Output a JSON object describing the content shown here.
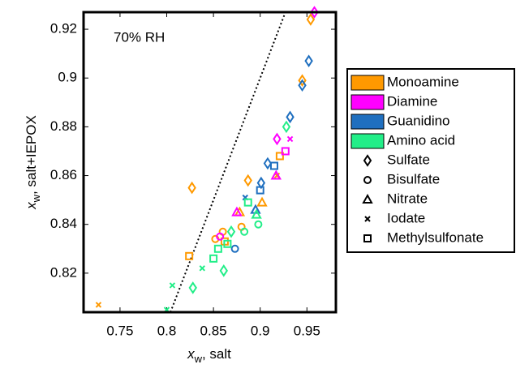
{
  "chart_data": {
    "type": "scatter",
    "annotation": "70% RH",
    "xlabel": {
      "var": "x",
      "sub": "w",
      "text": ", salt"
    },
    "ylabel": {
      "var": "x",
      "sub": "w",
      "text": ", salt+IEPOX"
    },
    "xlim": [
      0.711,
      0.981
    ],
    "ylim": [
      0.804,
      0.927
    ],
    "xticks": [
      0.75,
      0.8,
      0.85,
      0.9,
      0.95
    ],
    "yticks": [
      0.82,
      0.84,
      0.86,
      0.88,
      0.9,
      0.92
    ],
    "identity_line": true,
    "markers": [
      {
        "name": "Sulfate",
        "shape": "diamond"
      },
      {
        "name": "Bisulfate",
        "shape": "circle"
      },
      {
        "name": "Nitrate",
        "shape": "triangle"
      },
      {
        "name": "Iodate",
        "shape": "x"
      },
      {
        "name": "Methylsulfonate",
        "shape": "square"
      }
    ],
    "series": [
      {
        "name": "Monoamine",
        "color": "#ff9900",
        "x": [
          0.954,
          0.827,
          0.887,
          0.945,
          0.727,
          0.824,
          0.852,
          0.86,
          0.88,
          0.878,
          0.902,
          0.918,
          0.921,
          0.862
        ],
        "y": [
          0.924,
          0.855,
          0.858,
          0.899,
          0.807,
          0.827,
          0.834,
          0.837,
          0.839,
          0.845,
          0.849,
          0.86,
          0.868,
          0.833
        ],
        "marker": [
          0,
          0,
          0,
          0,
          3,
          4,
          1,
          1,
          1,
          2,
          2,
          3,
          4,
          4
        ]
      },
      {
        "name": "Diamine",
        "color": "#ff00ff",
        "x": [
          0.958,
          0.918,
          0.932,
          0.927,
          0.875,
          0.917,
          0.857
        ],
        "y": [
          0.927,
          0.875,
          0.875,
          0.87,
          0.845,
          0.86,
          0.835
        ],
        "marker": [
          0,
          0,
          3,
          4,
          2,
          2,
          1
        ]
      },
      {
        "name": "Guanidino",
        "color": "#1f6fbf",
        "x": [
          0.952,
          0.945,
          0.932,
          0.908,
          0.901,
          0.873,
          0.884,
          0.895,
          0.9,
          0.915
        ],
        "y": [
          0.907,
          0.897,
          0.884,
          0.865,
          0.857,
          0.83,
          0.851,
          0.846,
          0.854,
          0.864
        ],
        "marker": [
          0,
          0,
          0,
          0,
          0,
          1,
          3,
          2,
          4,
          4
        ]
      },
      {
        "name": "Amino acid",
        "color": "#22ee88",
        "x": [
          0.928,
          0.828,
          0.861,
          0.806,
          0.838,
          0.8,
          0.85,
          0.855,
          0.865,
          0.883,
          0.898,
          0.896,
          0.887,
          0.869
        ],
        "y": [
          0.88,
          0.814,
          0.821,
          0.815,
          0.822,
          0.805,
          0.826,
          0.83,
          0.832,
          0.837,
          0.84,
          0.844,
          0.849,
          0.837
        ],
        "marker": [
          0,
          0,
          0,
          3,
          3,
          3,
          4,
          4,
          4,
          1,
          1,
          2,
          4,
          0
        ]
      }
    ]
  }
}
